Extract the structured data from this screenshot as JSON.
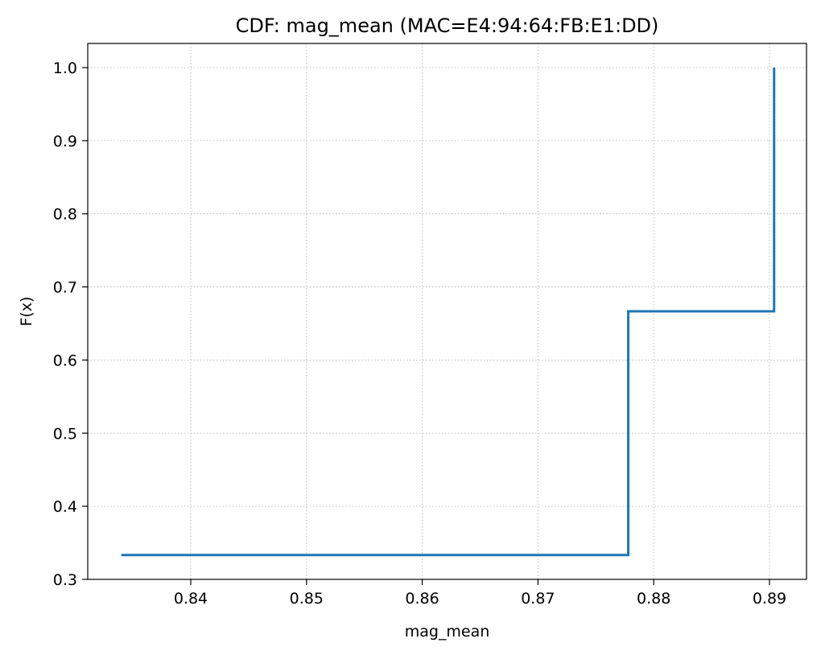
{
  "chart_data": {
    "type": "line",
    "title": "CDF: mag_mean (MAC=E4:94:64:FB:E1:DD)",
    "xlabel": "mag_mean",
    "ylabel": "F(x)",
    "xlim": [
      0.8311,
      0.8932
    ],
    "ylim": [
      0.3,
      1.033
    ],
    "xticks": [
      0.84,
      0.85,
      0.86,
      0.87,
      0.88,
      0.89
    ],
    "xtick_labels": [
      "0.84",
      "0.85",
      "0.86",
      "0.87",
      "0.88",
      "0.89"
    ],
    "yticks": [
      0.3,
      0.4,
      0.5,
      0.6,
      0.7,
      0.8,
      0.9,
      1.0
    ],
    "ytick_labels": [
      "0.3",
      "0.4",
      "0.5",
      "0.6",
      "0.7",
      "0.8",
      "0.9",
      "1.0"
    ],
    "grid": true,
    "series": [
      {
        "color": "#1f77b4",
        "step": "post",
        "x": [
          0.834,
          0.8778,
          0.8904
        ],
        "y": [
          0.3333,
          0.6667,
          1.0
        ]
      }
    ]
  }
}
